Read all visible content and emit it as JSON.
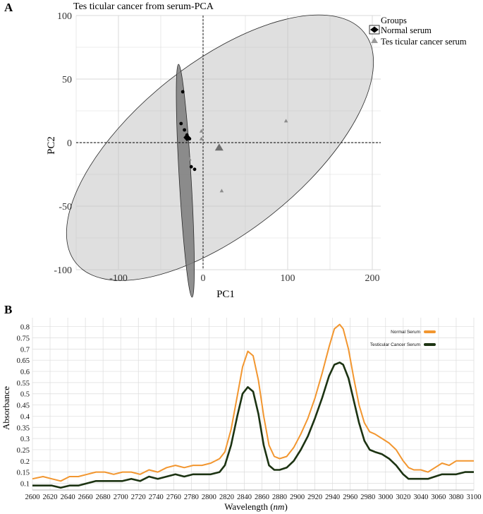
{
  "panel_a": {
    "letter": "A",
    "title": "Tes ticular cancer from serum-PCA",
    "legend": {
      "title": "Groups",
      "items": [
        "Normal serum",
        "Tes ticular cancer serum"
      ]
    }
  },
  "panel_b": {
    "letter": "B",
    "xlabel_prefix": "Wavelength (",
    "xlabel_unit": "nm",
    "xlabel_suffix": ")",
    "legend": [
      "Normal Serum",
      "Testicular Cancer Serum"
    ]
  },
  "colors": {
    "normal_serum": "#f2962f",
    "cancer_serum": "#1c3312",
    "grid": "#d9d9d9"
  },
  "chart_data": [
    {
      "type": "scatter",
      "title": "Tes ticular cancer from serum-PCA",
      "xlabel": "PC1",
      "ylabel": "PC2",
      "xlim": [
        -150,
        210
      ],
      "ylim": [
        -100,
        100
      ],
      "xticks": [
        -100,
        0,
        100,
        200
      ],
      "yticks": [
        -100,
        -50,
        0,
        50,
        100
      ],
      "grid": true,
      "legend_position": "top-right",
      "series": [
        {
          "name": "Normal serum",
          "marker": "circle",
          "points": [
            [
              -24,
              40
            ],
            [
              -26,
              15
            ],
            [
              -22,
              10
            ],
            [
              -19,
              6
            ],
            [
              -16,
              3
            ],
            [
              -14,
              -19
            ],
            [
              -10,
              -21
            ]
          ],
          "centroid": [
            -19,
            4
          ],
          "ellipse": {
            "center": [
              -21,
              -30
            ],
            "semi_major": 92,
            "semi_minor": 7,
            "angle_deg": -85
          }
        },
        {
          "name": "Tes ticular cancer serum",
          "marker": "triangle",
          "points": [
            [
              -2,
              9
            ],
            [
              -2,
              3
            ],
            [
              -16,
              -13
            ],
            [
              22,
              -38
            ],
            [
              98,
              17
            ]
          ],
          "centroid": [
            19,
            -4
          ],
          "ellipse": {
            "center": [
              20,
              -4
            ],
            "semi_major": 193,
            "semi_minor": 71,
            "angle_deg": 28
          }
        }
      ]
    },
    {
      "type": "line",
      "xlabel": "Wavelength (nm)",
      "ylabel": "Absorbance",
      "xlim": [
        2600,
        3100
      ],
      "ylim": [
        0.07,
        0.84
      ],
      "xticks": [
        2600,
        2620,
        2640,
        2660,
        2680,
        2700,
        2720,
        2740,
        2760,
        2780,
        2800,
        2820,
        2840,
        2860,
        2880,
        2900,
        2920,
        2940,
        2960,
        2980,
        3000,
        3020,
        3040,
        3060,
        3080,
        3100
      ],
      "yticks": [
        0.1,
        0.15,
        0.2,
        0.25,
        0.3,
        0.35,
        0.4,
        0.45,
        0.5,
        0.55,
        0.6,
        0.65,
        0.7,
        0.75,
        0.8
      ],
      "grid": true,
      "legend_position": "top-right",
      "series": [
        {
          "name": "Normal Serum",
          "x": [
            2600,
            2612,
            2622,
            2632,
            2642,
            2652,
            2662,
            2672,
            2682,
            2692,
            2702,
            2712,
            2722,
            2732,
            2742,
            2752,
            2762,
            2772,
            2782,
            2792,
            2802,
            2812,
            2818,
            2825,
            2832,
            2838,
            2844,
            2850,
            2856,
            2862,
            2868,
            2874,
            2880,
            2888,
            2896,
            2904,
            2912,
            2920,
            2928,
            2936,
            2942,
            2948,
            2952,
            2958,
            2964,
            2970,
            2976,
            2982,
            2988,
            2996,
            3004,
            3012,
            3020,
            3026,
            3032,
            3040,
            3048,
            3056,
            3064,
            3072,
            3080,
            3090,
            3100
          ],
          "y": [
            0.12,
            0.13,
            0.12,
            0.11,
            0.13,
            0.13,
            0.14,
            0.15,
            0.15,
            0.14,
            0.15,
            0.15,
            0.14,
            0.16,
            0.15,
            0.17,
            0.18,
            0.17,
            0.18,
            0.18,
            0.19,
            0.21,
            0.24,
            0.34,
            0.49,
            0.62,
            0.69,
            0.67,
            0.56,
            0.4,
            0.27,
            0.22,
            0.21,
            0.22,
            0.26,
            0.32,
            0.39,
            0.48,
            0.59,
            0.71,
            0.79,
            0.81,
            0.79,
            0.7,
            0.57,
            0.45,
            0.37,
            0.33,
            0.32,
            0.3,
            0.28,
            0.25,
            0.2,
            0.17,
            0.16,
            0.16,
            0.15,
            0.17,
            0.19,
            0.18,
            0.2,
            0.2,
            0.2
          ]
        },
        {
          "name": "Testicular Cancer Serum",
          "x": [
            2600,
            2612,
            2622,
            2632,
            2642,
            2652,
            2662,
            2672,
            2682,
            2692,
            2702,
            2712,
            2722,
            2732,
            2742,
            2752,
            2762,
            2772,
            2782,
            2792,
            2802,
            2812,
            2818,
            2825,
            2832,
            2838,
            2844,
            2850,
            2856,
            2862,
            2868,
            2874,
            2880,
            2888,
            2896,
            2904,
            2912,
            2920,
            2928,
            2936,
            2942,
            2948,
            2952,
            2958,
            2964,
            2970,
            2976,
            2982,
            2988,
            2996,
            3004,
            3012,
            3020,
            3026,
            3032,
            3040,
            3048,
            3056,
            3064,
            3072,
            3080,
            3090,
            3100
          ],
          "y": [
            0.09,
            0.09,
            0.09,
            0.08,
            0.09,
            0.09,
            0.1,
            0.11,
            0.11,
            0.11,
            0.11,
            0.12,
            0.11,
            0.13,
            0.12,
            0.13,
            0.14,
            0.13,
            0.14,
            0.14,
            0.14,
            0.15,
            0.18,
            0.27,
            0.4,
            0.5,
            0.53,
            0.51,
            0.41,
            0.27,
            0.18,
            0.16,
            0.16,
            0.17,
            0.2,
            0.25,
            0.31,
            0.39,
            0.48,
            0.58,
            0.63,
            0.64,
            0.63,
            0.57,
            0.47,
            0.37,
            0.29,
            0.25,
            0.24,
            0.23,
            0.21,
            0.18,
            0.14,
            0.12,
            0.12,
            0.12,
            0.12,
            0.13,
            0.14,
            0.14,
            0.14,
            0.15,
            0.15
          ]
        }
      ]
    }
  ]
}
